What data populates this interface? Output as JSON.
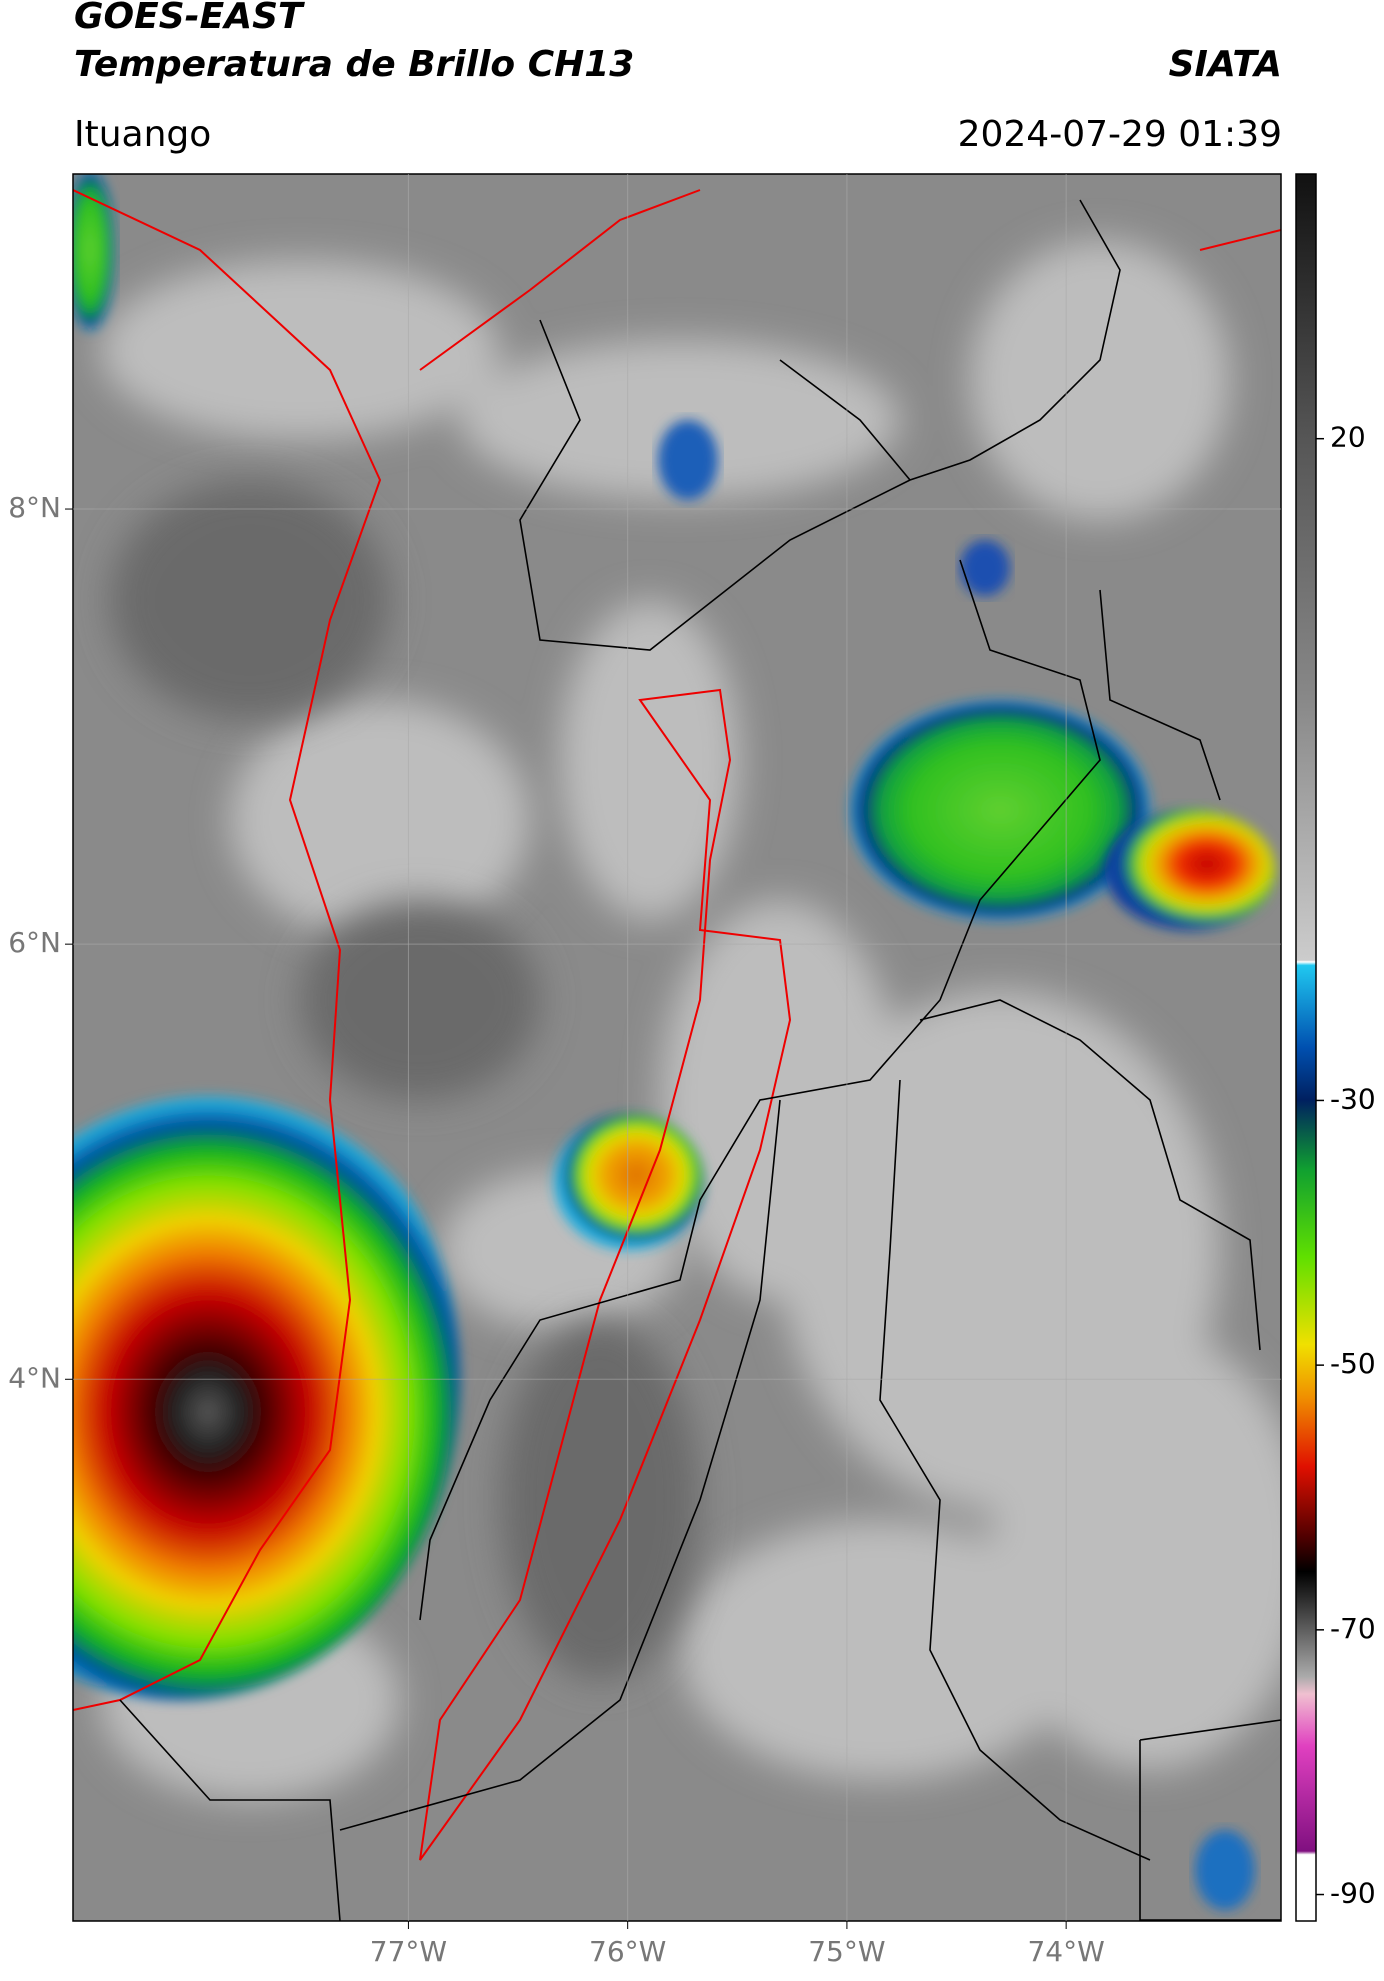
{
  "header": {
    "title": "GOES-EAST",
    "subtitle": "Temperatura de Brillo CH13",
    "source": "SIATA",
    "location": "Ituango",
    "datetime": "2024-07-29 01:39"
  },
  "map": {
    "lonlim": [
      -78.53,
      -73.02
    ],
    "latlim": [
      1.51,
      9.54
    ],
    "grid": true,
    "xticks": [
      {
        "value": -77,
        "label": "77°W"
      },
      {
        "value": -76,
        "label": "76°W"
      },
      {
        "value": -75,
        "label": "75°W"
      },
      {
        "value": -74,
        "label": "74°W"
      }
    ],
    "yticks": [
      {
        "value": 8,
        "label": "8°N"
      },
      {
        "value": 6,
        "label": "6°N"
      },
      {
        "value": 4,
        "label": "4°N"
      }
    ]
  },
  "colorbar": {
    "lim": [
      -92,
      40
    ],
    "ticks": [
      20,
      -30,
      -50,
      -70,
      -90
    ]
  }
}
